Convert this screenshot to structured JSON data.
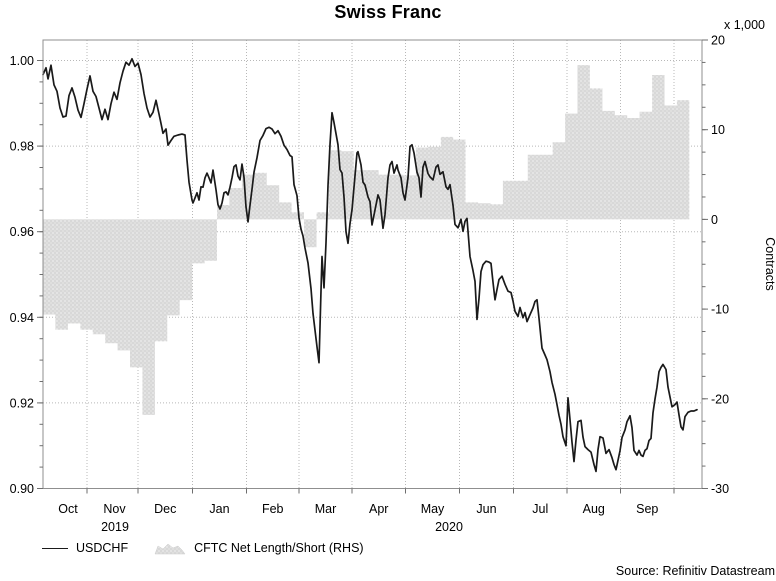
{
  "title": "Swiss Franc",
  "source": "Source: Refinitiv Datastream",
  "legend": [
    {
      "label": "USDCHF",
      "type": "line",
      "color": "#1a1a1a"
    },
    {
      "label": "CFTC Net Length/Short (RHS)",
      "type": "area",
      "color": "#d7d7d7"
    }
  ],
  "axes": {
    "left": {
      "tick_labels": [
        "1.00",
        "0.98",
        "0.96",
        "0.94",
        "0.92",
        "0.90"
      ],
      "tick_values": [
        1.0,
        0.98,
        0.96,
        0.94,
        0.92,
        0.9
      ],
      "minor_step": 0.005,
      "range": [
        0.9,
        1.0
      ]
    },
    "right": {
      "unit_label": "x 1,000",
      "side_label": "Contracts",
      "tick_labels": [
        "20",
        "10",
        "0",
        "-10",
        "-20",
        "-30"
      ],
      "tick_values": [
        20,
        10,
        0,
        -10,
        -20,
        -30
      ],
      "minor_step": 2.5,
      "range": [
        -30,
        20
      ]
    },
    "x": {
      "month_labels": [
        "Oct",
        "Nov",
        "Dec",
        "Jan",
        "Feb",
        "Mar",
        "Apr",
        "May",
        "Jun",
        "Jul",
        "Aug",
        "Sep"
      ],
      "year_labels": [
        {
          "label": "2019",
          "x": 115
        },
        {
          "label": "2020",
          "x": 449
        }
      ],
      "range_note": "Oct 2019 - Oct 2020"
    }
  },
  "chart_data": {
    "type": "line+area",
    "title": "Swiss Franc",
    "grid": true,
    "legend_position": "bottom",
    "ylim_left": [
      0.9,
      1.0
    ],
    "ylim_right": [
      -30,
      20
    ],
    "series": [
      {
        "name": "USDCHF",
        "type": "line",
        "axis": "left",
        "color": "#1a1a1a",
        "x_unit": "px along time axis (43=Oct 2019 start, 702=right edge)",
        "points": [
          [
            43,
            0.9967
          ],
          [
            46,
            0.9983
          ],
          [
            48,
            0.9957
          ],
          [
            51,
            0.9989
          ],
          [
            54,
            0.9943
          ],
          [
            57,
            0.9928
          ],
          [
            60,
            0.9889
          ],
          [
            63,
            0.9868
          ],
          [
            66,
            0.987
          ],
          [
            69,
            0.9918
          ],
          [
            72,
            0.9936
          ],
          [
            75,
            0.9914
          ],
          [
            78,
            0.9884
          ],
          [
            81,
            0.9867
          ],
          [
            84,
            0.9899
          ],
          [
            87,
            0.9933
          ],
          [
            90,
            0.9964
          ],
          [
            93,
            0.9928
          ],
          [
            96,
            0.9916
          ],
          [
            99,
            0.9889
          ],
          [
            102,
            0.9862
          ],
          [
            105,
            0.9886
          ],
          [
            108,
            0.9862
          ],
          [
            111,
            0.9899
          ],
          [
            114,
            0.9926
          ],
          [
            117,
            0.9909
          ],
          [
            120,
            0.9948
          ],
          [
            123,
            0.9975
          ],
          [
            126,
            0.9996
          ],
          [
            129,
            0.9989
          ],
          [
            132,
            1.0004
          ],
          [
            135,
            0.9986
          ],
          [
            138,
            0.9994
          ],
          [
            141,
            0.9967
          ],
          [
            144,
            0.9923
          ],
          [
            147,
            0.9889
          ],
          [
            150,
            0.9868
          ],
          [
            153,
            0.9879
          ],
          [
            156,
            0.9907
          ],
          [
            159,
            0.9875
          ],
          [
            161,
            0.9853
          ],
          [
            163,
            0.983
          ],
          [
            166,
            0.984
          ],
          [
            168,
            0.9802
          ],
          [
            171,
            0.9813
          ],
          [
            174,
            0.9823
          ],
          [
            178,
            0.9826
          ],
          [
            182,
            0.9828
          ],
          [
            185,
            0.9826
          ],
          [
            187,
            0.9767
          ],
          [
            189,
            0.9716
          ],
          [
            192,
            0.9674
          ],
          [
            193,
            0.9667
          ],
          [
            195,
            0.9679
          ],
          [
            197,
            0.9691
          ],
          [
            199,
            0.9674
          ],
          [
            201,
            0.9705
          ],
          [
            203,
            0.9704
          ],
          [
            205,
            0.9726
          ],
          [
            207,
            0.9737
          ],
          [
            209,
            0.9726
          ],
          [
            211,
            0.9714
          ],
          [
            213,
            0.9744
          ],
          [
            216,
            0.9698
          ],
          [
            218,
            0.9663
          ],
          [
            220,
            0.9653
          ],
          [
            222,
            0.9667
          ],
          [
            224,
            0.9691
          ],
          [
            226,
            0.9693
          ],
          [
            228,
            0.9686
          ],
          [
            230,
            0.9704
          ],
          [
            232,
            0.9726
          ],
          [
            234,
            0.9752
          ],
          [
            236,
            0.9756
          ],
          [
            238,
            0.973
          ],
          [
            240,
            0.9721
          ],
          [
            242,
            0.9758
          ],
          [
            244,
            0.9727
          ],
          [
            246,
            0.9658
          ],
          [
            248,
            0.9623
          ],
          [
            250,
            0.9662
          ],
          [
            252,
            0.9699
          ],
          [
            254,
            0.9739
          ],
          [
            257,
            0.9773
          ],
          [
            260,
            0.9813
          ],
          [
            263,
            0.9825
          ],
          [
            266,
            0.9841
          ],
          [
            269,
            0.9844
          ],
          [
            272,
            0.984
          ],
          [
            275,
            0.9829
          ],
          [
            278,
            0.9836
          ],
          [
            281,
            0.9823
          ],
          [
            284,
            0.9802
          ],
          [
            287,
            0.9792
          ],
          [
            290,
            0.9778
          ],
          [
            292,
            0.9775
          ],
          [
            294,
            0.971
          ],
          [
            297,
            0.9684
          ],
          [
            299,
            0.9632
          ],
          [
            301,
            0.9606
          ],
          [
            303,
            0.959
          ],
          [
            305,
            0.9562
          ],
          [
            308,
            0.9527
          ],
          [
            311,
            0.9467
          ],
          [
            313,
            0.9409
          ],
          [
            315,
            0.937
          ],
          [
            317,
            0.9331
          ],
          [
            319,
            0.9294
          ],
          [
            321,
            0.9462
          ],
          [
            322,
            0.9542
          ],
          [
            324,
            0.9469
          ],
          [
            326,
            0.9574
          ],
          [
            328,
            0.9708
          ],
          [
            330,
            0.9804
          ],
          [
            332,
            0.9878
          ],
          [
            334,
            0.9855
          ],
          [
            336,
            0.9829
          ],
          [
            338,
            0.9803
          ],
          [
            340,
            0.9745
          ],
          [
            342,
            0.9737
          ],
          [
            344,
            0.9681
          ],
          [
            346,
            0.96
          ],
          [
            348,
            0.9573
          ],
          [
            350,
            0.9619
          ],
          [
            352,
            0.9651
          ],
          [
            354,
            0.9704
          ],
          [
            357,
            0.9784
          ],
          [
            358,
            0.9787
          ],
          [
            361,
            0.9756
          ],
          [
            363,
            0.9716
          ],
          [
            365,
            0.9709
          ],
          [
            368,
            0.9681
          ],
          [
            370,
            0.967
          ],
          [
            372,
            0.9616
          ],
          [
            375,
            0.9651
          ],
          [
            378,
            0.9686
          ],
          [
            380,
            0.9674
          ],
          [
            383,
            0.9608
          ],
          [
            385,
            0.964
          ],
          [
            388,
            0.9726
          ],
          [
            390,
            0.9756
          ],
          [
            392,
            0.9764
          ],
          [
            394,
            0.9737
          ],
          [
            397,
            0.9756
          ],
          [
            398,
            0.9744
          ],
          [
            401,
            0.9726
          ],
          [
            403,
            0.9691
          ],
          [
            405,
            0.9674
          ],
          [
            408,
            0.9726
          ],
          [
            410,
            0.9799
          ],
          [
            412,
            0.9803
          ],
          [
            414,
            0.9784
          ],
          [
            417,
            0.9739
          ],
          [
            419,
            0.9726
          ],
          [
            421,
            0.9681
          ],
          [
            423,
            0.9751
          ],
          [
            425,
            0.9764
          ],
          [
            428,
            0.9736
          ],
          [
            430,
            0.9728
          ],
          [
            433,
            0.9721
          ],
          [
            436,
            0.9751
          ],
          [
            438,
            0.9756
          ],
          [
            440,
            0.9734
          ],
          [
            443,
            0.974
          ],
          [
            446,
            0.9705
          ],
          [
            448,
            0.9699
          ],
          [
            450,
            0.971
          ],
          [
            453,
            0.9662
          ],
          [
            455,
            0.9617
          ],
          [
            458,
            0.9609
          ],
          [
            461,
            0.9629
          ],
          [
            463,
            0.9601
          ],
          [
            465,
            0.9624
          ],
          [
            467,
            0.9631
          ],
          [
            470,
            0.9542
          ],
          [
            473,
            0.9509
          ],
          [
            475,
            0.9484
          ],
          [
            477,
            0.9395
          ],
          [
            479,
            0.9444
          ],
          [
            481,
            0.9507
          ],
          [
            483,
            0.9523
          ],
          [
            486,
            0.9531
          ],
          [
            489,
            0.9529
          ],
          [
            491,
            0.9526
          ],
          [
            493,
            0.9482
          ],
          [
            495,
            0.9441
          ],
          [
            497,
            0.9465
          ],
          [
            499,
            0.9488
          ],
          [
            502,
            0.9496
          ],
          [
            505,
            0.9477
          ],
          [
            508,
            0.9461
          ],
          [
            511,
            0.9458
          ],
          [
            513,
            0.9438
          ],
          [
            515,
            0.9414
          ],
          [
            518,
            0.9402
          ],
          [
            520,
            0.9423
          ],
          [
            523,
            0.9399
          ],
          [
            525,
            0.9411
          ],
          [
            527,
            0.939
          ],
          [
            530,
            0.9406
          ],
          [
            533,
            0.9422
          ],
          [
            535,
            0.9437
          ],
          [
            537,
            0.9441
          ],
          [
            539,
            0.9398
          ],
          [
            542,
            0.9328
          ],
          [
            545,
            0.9312
          ],
          [
            547,
            0.9301
          ],
          [
            550,
            0.9273
          ],
          [
            552,
            0.9248
          ],
          [
            555,
            0.922
          ],
          [
            557,
            0.9196
          ],
          [
            559,
            0.9171
          ],
          [
            561,
            0.915
          ],
          [
            563,
            0.9121
          ],
          [
            566,
            0.91
          ],
          [
            568,
            0.9212
          ],
          [
            570,
            0.9161
          ],
          [
            572,
            0.9108
          ],
          [
            574,
            0.9063
          ],
          [
            576,
            0.9113
          ],
          [
            578,
            0.9156
          ],
          [
            581,
            0.9159
          ],
          [
            583,
            0.912
          ],
          [
            585,
            0.9098
          ],
          [
            588,
            0.9091
          ],
          [
            591,
            0.9085
          ],
          [
            594,
            0.9056
          ],
          [
            596,
            0.904
          ],
          [
            598,
            0.9091
          ],
          [
            600,
            0.9121
          ],
          [
            603,
            0.9118
          ],
          [
            606,
            0.9082
          ],
          [
            609,
            0.9091
          ],
          [
            612,
            0.9072
          ],
          [
            614,
            0.9056
          ],
          [
            616,
            0.9044
          ],
          [
            618,
            0.9066
          ],
          [
            620,
            0.9088
          ],
          [
            622,
            0.9119
          ],
          [
            625,
            0.9137
          ],
          [
            627,
            0.9156
          ],
          [
            630,
            0.917
          ],
          [
            632,
            0.9142
          ],
          [
            634,
            0.9089
          ],
          [
            637,
            0.9078
          ],
          [
            639,
            0.9089
          ],
          [
            641,
            0.9078
          ],
          [
            643,
            0.9075
          ],
          [
            645,
            0.9089
          ],
          [
            647,
            0.9093
          ],
          [
            649,
            0.9112
          ],
          [
            651,
            0.9117
          ],
          [
            653,
            0.9177
          ],
          [
            655,
            0.9209
          ],
          [
            657,
            0.9237
          ],
          [
            659,
            0.9273
          ],
          [
            661,
            0.9283
          ],
          [
            663,
            0.929
          ],
          [
            666,
            0.9278
          ],
          [
            668,
            0.9237
          ],
          [
            670,
            0.9214
          ],
          [
            672,
            0.9191
          ],
          [
            675,
            0.9196
          ],
          [
            677,
            0.9202
          ],
          [
            679,
            0.9172
          ],
          [
            681,
            0.9144
          ],
          [
            683,
            0.9137
          ],
          [
            685,
            0.9168
          ],
          [
            688,
            0.9178
          ],
          [
            691,
            0.9181
          ],
          [
            694,
            0.9181
          ],
          [
            697,
            0.9184
          ]
        ]
      },
      {
        "name": "CFTC Net Length/Short (RHS)",
        "type": "step-area",
        "axis": "right",
        "color": "#d7d7d7",
        "frequency": "weekly",
        "start_date": "2019-10-01",
        "interval_days": 7,
        "values": [
          -10.6,
          -12.3,
          -11.6,
          -12.3,
          -12.8,
          -13.8,
          -14.6,
          -16.5,
          -21.8,
          -13.6,
          -10.7,
          -9.0,
          -4.9,
          -4.6,
          1.6,
          3.5,
          5.0,
          5.2,
          3.8,
          1.9,
          0.8,
          -3.1,
          0.8,
          7.7,
          7.6,
          5.5,
          5.5,
          5.0,
          5.0,
          4.9,
          8.0,
          8.1,
          9.2,
          8.9,
          1.9,
          1.8,
          1.7,
          4.3,
          4.3,
          7.2,
          7.2,
          8.6,
          11.8,
          17.2,
          14.6,
          12.1,
          11.6,
          11.3,
          12.0,
          16.1,
          12.7,
          13.3
        ]
      }
    ]
  }
}
